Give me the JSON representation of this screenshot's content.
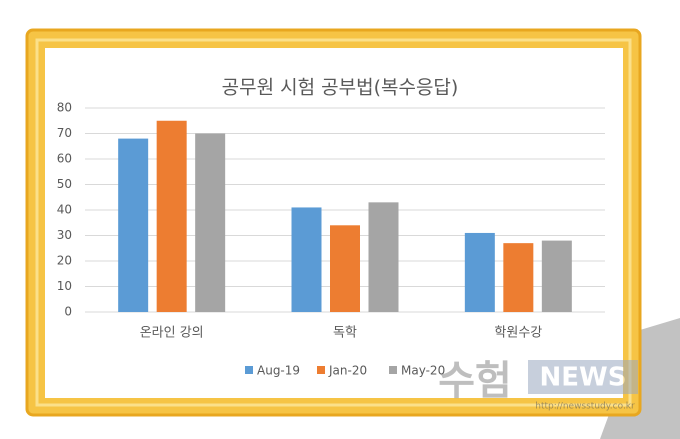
{
  "chart_data": {
    "type": "bar",
    "title": "공무원 시험 공부법(복수응답)",
    "categories": [
      "온라인 강의",
      "독학",
      "학원수강"
    ],
    "series": [
      {
        "name": "Aug-19",
        "color": "#5b9bd5",
        "values": [
          68,
          41,
          31
        ]
      },
      {
        "name": "Jan-20",
        "color": "#ed7d31",
        "values": [
          75,
          34,
          27
        ]
      },
      {
        "name": "May-20",
        "color": "#a5a5a5",
        "values": [
          70,
          43,
          28
        ]
      }
    ],
    "ylim": [
      0,
      80
    ],
    "yticks": [
      0,
      10,
      20,
      30,
      40,
      50,
      60,
      70,
      80
    ],
    "grid": true,
    "legend": "bottom"
  },
  "watermark": {
    "text": "수험",
    "brand": "NEWS",
    "url": "http://newsstudy.co.kr"
  }
}
